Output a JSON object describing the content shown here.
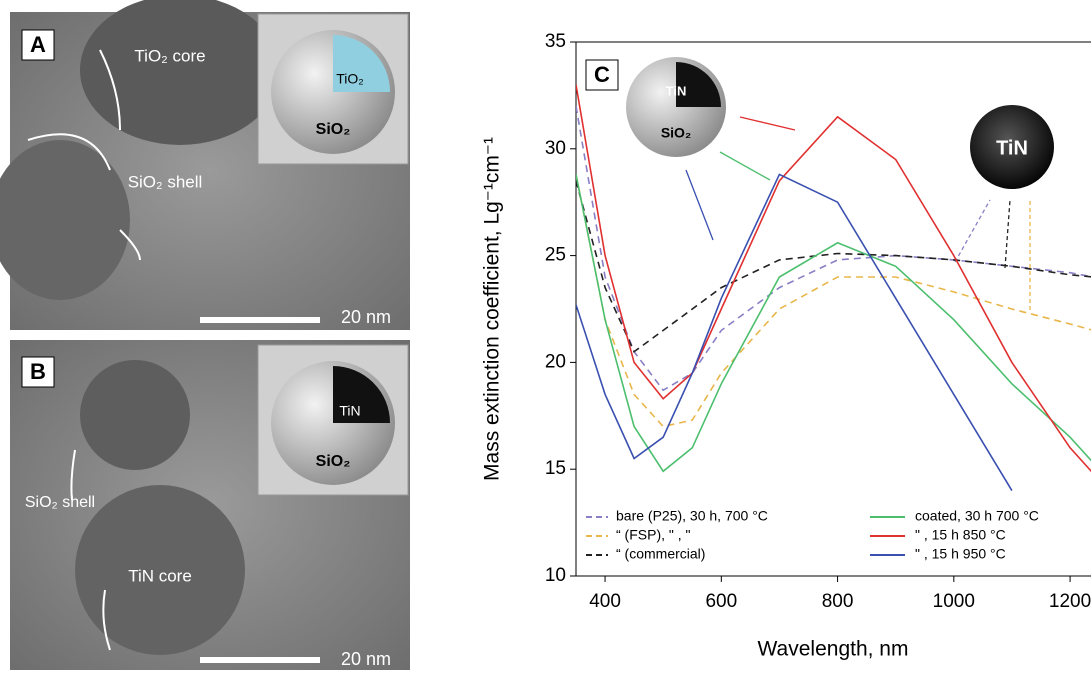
{
  "panels": [
    {
      "label": "A",
      "core": "TiO₂ core",
      "shell": "SiO₂ shell",
      "scale": "20 nm",
      "inset_core": "TiO₂",
      "inset_shell": "SiO₂"
    },
    {
      "label": "B",
      "core": "TiN core",
      "shell": "SiO₂ shell",
      "scale": "20 nm",
      "inset_core": "TiN",
      "inset_shell": "SiO₂"
    }
  ],
  "chart_data": {
    "type": "line",
    "panel_label": "C",
    "xlabel": "Wavelength, nm",
    "ylabel": "Mass extinction coefficient, Lg⁻¹cm⁻¹",
    "annotations": [
      "TiN",
      "SiO₂",
      "TiN"
    ],
    "x": [
      350,
      400,
      450,
      500,
      550,
      600,
      700,
      800,
      900,
      1000,
      1100,
      1200,
      1240
    ],
    "xlim": [
      350,
      1236
    ],
    "ylim": [
      10,
      35
    ],
    "xticks": [
      400,
      600,
      800,
      1000,
      1200
    ],
    "yticks": [
      10,
      15,
      20,
      25,
      30,
      35
    ],
    "series": [
      {
        "name": "bare (P25),  30 h, 700 °C",
        "color": "#8a7fc4",
        "dashed": true,
        "values": [
          32,
          24,
          20.5,
          18.7,
          19.5,
          21.5,
          23.5,
          24.8,
          25,
          24.8,
          24.5,
          24.2,
          24
        ]
      },
      {
        "name": "“  (FSP),  \"  ,  \"",
        "color": "#e8b64a",
        "dashed": true,
        "values": [
          28.8,
          22,
          18.5,
          17,
          17.3,
          19.5,
          22.5,
          24,
          24,
          23.3,
          22.5,
          21.8,
          21.5
        ]
      },
      {
        "name": "“  (commercial)",
        "color": "#222222",
        "dashed": true,
        "values": [
          28.5,
          23.5,
          20.5,
          21.5,
          22.5,
          23.5,
          24.8,
          25.1,
          25,
          24.8,
          24.5,
          24.1,
          24
        ]
      },
      {
        "name": "coated, 30 h 700 °C",
        "color": "#4cbf6e",
        "dashed": false,
        "values": [
          28.8,
          22,
          17,
          14.9,
          16,
          19,
          24,
          25.6,
          24.5,
          22,
          19,
          16.5,
          15.3
        ]
      },
      {
        "name": "\"  , 15 h 850 °C",
        "color": "#e03030",
        "dashed": false,
        "values": [
          33,
          25,
          20,
          18.3,
          19.5,
          22.5,
          28.5,
          31.5,
          29.5,
          25,
          20,
          16,
          14.8
        ]
      },
      {
        "name": "\"  , 15 h 950 °C",
        "color": "#3a50b0",
        "dashed": false,
        "values": [
          22.7,
          18.5,
          15.5,
          16.5,
          19.5,
          23,
          28.8,
          27.5,
          23,
          18.5,
          14,
          null,
          null
        ]
      }
    ]
  }
}
